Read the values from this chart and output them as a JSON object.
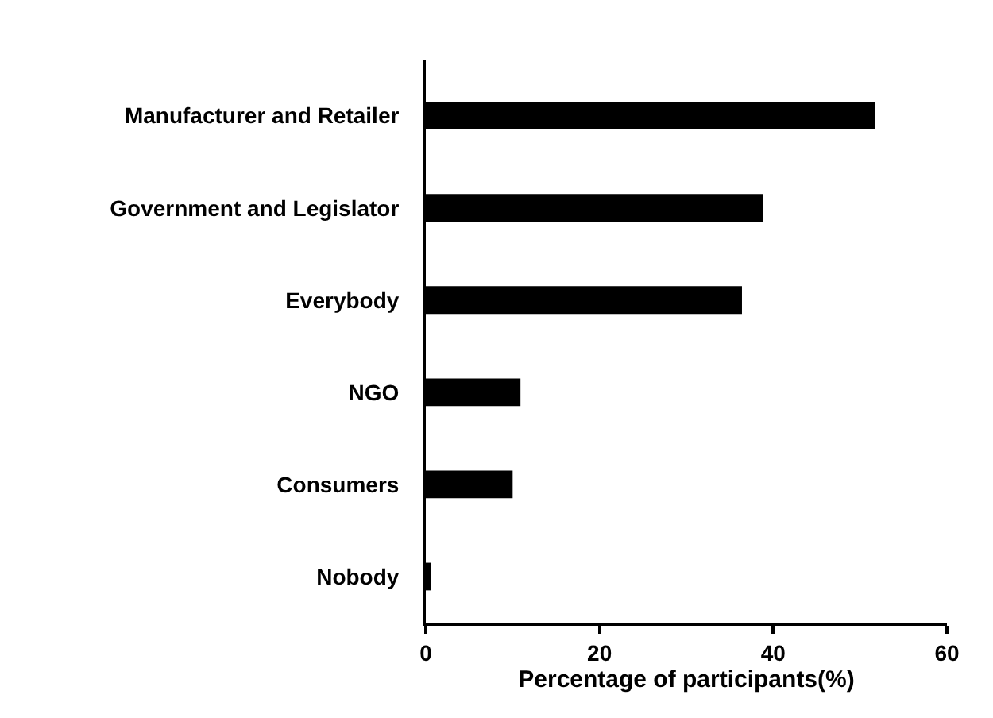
{
  "chart_data": {
    "type": "bar",
    "orientation": "horizontal",
    "categories": [
      "Manufacturer and Retailer",
      "Government and Legislator",
      "Everybody",
      "NGO",
      "Consumers",
      "Nobody"
    ],
    "values": [
      51.7,
      38.8,
      36.4,
      10.9,
      10.0,
      0.6
    ],
    "color": "#000000",
    "xlabel": "Percentage of participants(%)",
    "xlim": [
      0,
      60
    ],
    "xticks": [
      0,
      20,
      40,
      60
    ]
  }
}
